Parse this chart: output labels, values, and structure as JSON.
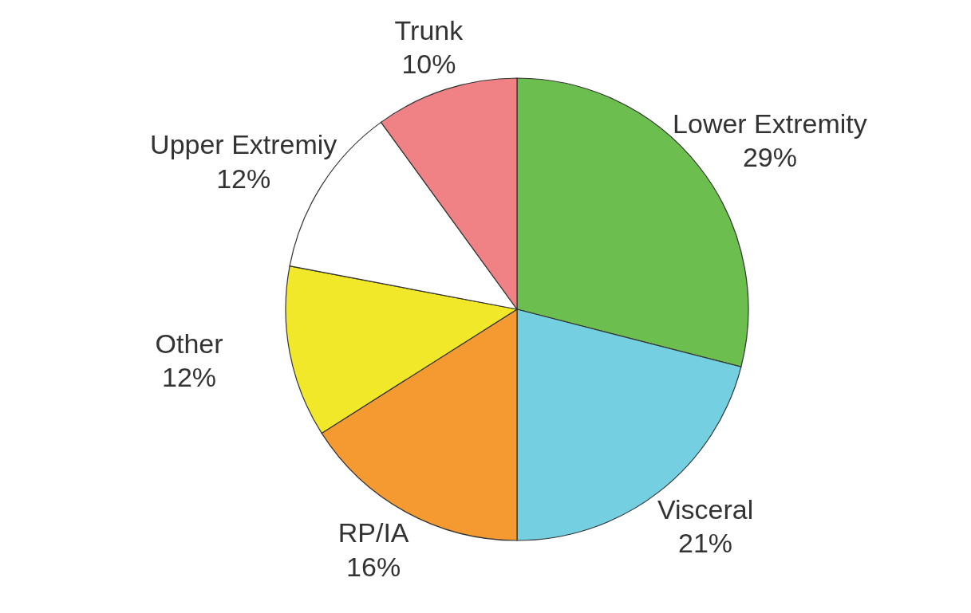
{
  "chart_data": {
    "type": "pie",
    "categories": [
      "Lower Extremity",
      "Visceral",
      "RP/IA",
      "Other",
      "Upper Extremiy",
      "Trunk"
    ],
    "values": [
      29,
      21,
      16,
      12,
      12,
      10
    ],
    "colors": [
      "#6cbf4f",
      "#74cfe0",
      "#f59a30",
      "#f2e82a",
      "#ffffff",
      "#f08286"
    ],
    "value_labels": [
      "29%",
      "21%",
      "16%",
      "12%",
      "12%",
      "10%"
    ]
  }
}
